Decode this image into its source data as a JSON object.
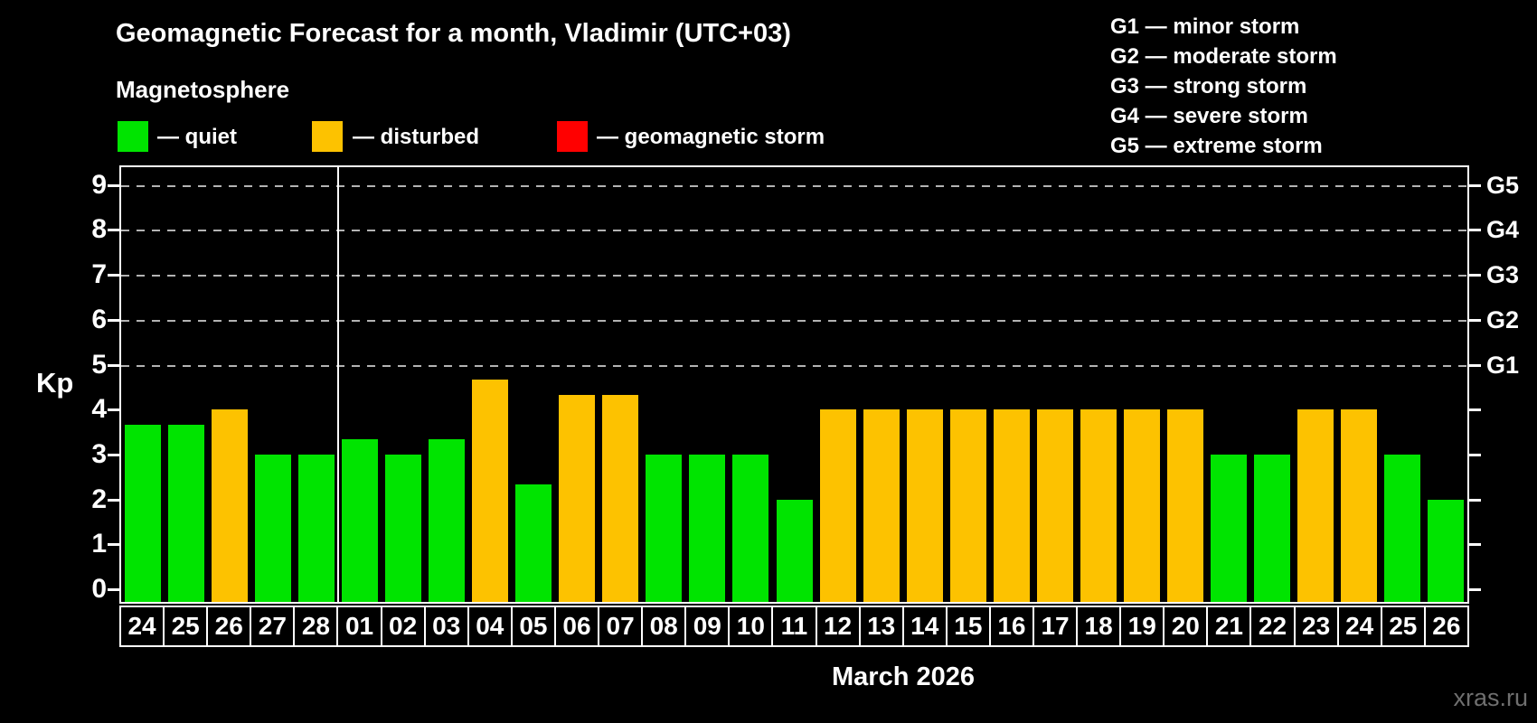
{
  "title": "Geomagnetic Forecast for a month, Vladimir (UTC+03)",
  "subtitle": "Magnetosphere",
  "legend": {
    "items": [
      {
        "key": "quiet",
        "label": "— quiet",
        "color": "#00e400"
      },
      {
        "key": "disturbed",
        "label": "— disturbed",
        "color": "#fdc200"
      },
      {
        "key": "storm",
        "label": "— geomagnetic storm",
        "color": "#ff0000"
      }
    ]
  },
  "g_legend": [
    "G1 — minor storm",
    "G2 — moderate storm",
    "G3 — strong storm",
    "G4 — severe storm",
    "G5 — extreme storm"
  ],
  "watermark": "xras.ru",
  "chart_data": {
    "type": "bar",
    "title": "Geomagnetic Forecast for a month, Vladimir (UTC+03)",
    "xlabel": "March 2026",
    "ylabel": "Kp",
    "ylim": [
      -0.3,
      9.4
    ],
    "yticks": [
      0,
      1,
      2,
      3,
      4,
      5,
      6,
      7,
      8,
      9
    ],
    "gridlines_at": [
      5,
      6,
      7,
      8,
      9
    ],
    "grid": "dashed horizontal at Kp 5-9 only",
    "right_axis": [
      {
        "label": "G1",
        "kp": 5
      },
      {
        "label": "G2",
        "kp": 6
      },
      {
        "label": "G3",
        "kp": 7
      },
      {
        "label": "G4",
        "kp": 8
      },
      {
        "label": "G5",
        "kp": 9
      }
    ],
    "month_separator_index": 5,
    "categories": [
      "24",
      "25",
      "26",
      "27",
      "28",
      "01",
      "02",
      "03",
      "04",
      "05",
      "06",
      "07",
      "08",
      "09",
      "10",
      "11",
      "12",
      "13",
      "14",
      "15",
      "16",
      "17",
      "18",
      "19",
      "20",
      "21",
      "22",
      "23",
      "24",
      "25",
      "26"
    ],
    "values": [
      3.67,
      3.67,
      4,
      3,
      3,
      3.33,
      3,
      3.33,
      4.67,
      2.33,
      4.33,
      4.33,
      3,
      3,
      3,
      2,
      4,
      4,
      4,
      4,
      4,
      4,
      4,
      4,
      4,
      3,
      3,
      4,
      4,
      3,
      2
    ],
    "states": [
      "quiet",
      "quiet",
      "disturbed",
      "quiet",
      "quiet",
      "quiet",
      "quiet",
      "quiet",
      "disturbed",
      "quiet",
      "disturbed",
      "disturbed",
      "quiet",
      "quiet",
      "quiet",
      "quiet",
      "disturbed",
      "disturbed",
      "disturbed",
      "disturbed",
      "disturbed",
      "disturbed",
      "disturbed",
      "disturbed",
      "disturbed",
      "quiet",
      "quiet",
      "disturbed",
      "disturbed",
      "quiet",
      "quiet"
    ]
  }
}
